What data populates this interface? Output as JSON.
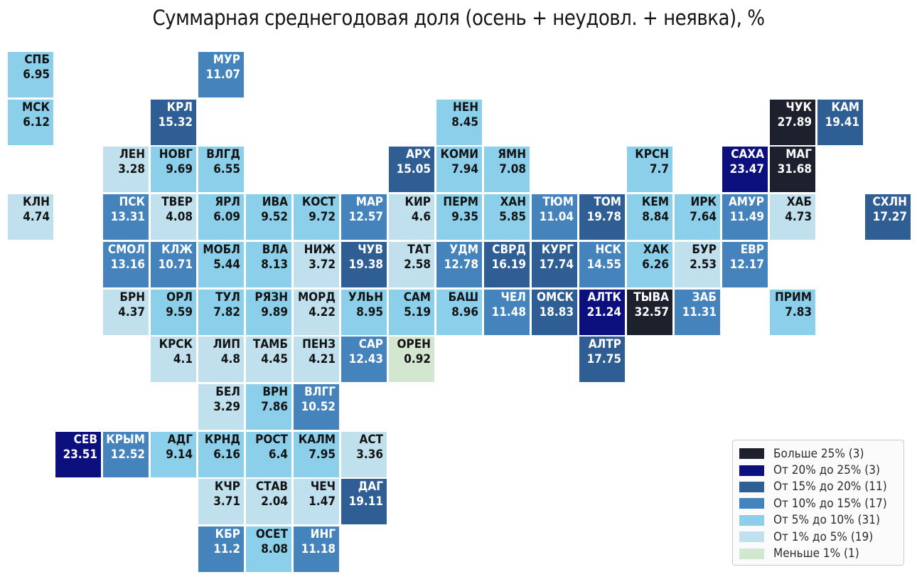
{
  "title": "Суммарная среднегодовая доля (осень + неудовл. + неявка), %",
  "colors": {
    "gt25": "#1c212d",
    "r20_25": "#0c107e",
    "r15_20": "#2e5e94",
    "r10_15": "#4583bc",
    "r5_10": "#8bcfea",
    "r1_5": "#c0e0ee",
    "lt1": "#d2e6d0"
  },
  "text_colors": {
    "dark": "#131313",
    "light": "#ffffff"
  },
  "legend": {
    "items": [
      {
        "label": "Больше 25% (3)",
        "color_key": "gt25"
      },
      {
        "label": "От 20% до 25% (3)",
        "color_key": "r20_25"
      },
      {
        "label": "От 15% до 20% (11)",
        "color_key": "r15_20"
      },
      {
        "label": "От 10% до 15% (17)",
        "color_key": "r10_15"
      },
      {
        "label": "От 5% до 10% (31)",
        "color_key": "r5_10"
      },
      {
        "label": "От 1% до 5% (19)",
        "color_key": "r1_5"
      },
      {
        "label": "Меньше 1% (1)",
        "color_key": "lt1"
      }
    ]
  },
  "chart_data": {
    "type": "heatmap",
    "title": "Суммарная среднегодовая доля (осень + неудовл. + неявка), %",
    "value_unit": "%",
    "bucket_thresholds": [
      1,
      5,
      10,
      15,
      20,
      25
    ],
    "legend_position": "lower right",
    "regions": [
      {
        "code": "СПБ",
        "value": 6.95,
        "row": 0,
        "col": 0
      },
      {
        "code": "МУР",
        "value": 11.07,
        "row": 0,
        "col": 4
      },
      {
        "code": "МСК",
        "value": 6.12,
        "row": 1,
        "col": 0
      },
      {
        "code": "КРЛ",
        "value": 15.32,
        "row": 1,
        "col": 3
      },
      {
        "code": "НЕН",
        "value": 8.45,
        "row": 1,
        "col": 9
      },
      {
        "code": "ЧУК",
        "value": 27.89,
        "row": 1,
        "col": 16
      },
      {
        "code": "КАМ",
        "value": 19.41,
        "row": 1,
        "col": 17
      },
      {
        "code": "ЛЕН",
        "value": 3.28,
        "row": 2,
        "col": 2
      },
      {
        "code": "НОВГ",
        "value": 9.69,
        "row": 2,
        "col": 3
      },
      {
        "code": "ВЛГД",
        "value": 6.55,
        "row": 2,
        "col": 4
      },
      {
        "code": "АРХ",
        "value": 15.05,
        "row": 2,
        "col": 8
      },
      {
        "code": "КОМИ",
        "value": 7.94,
        "row": 2,
        "col": 9
      },
      {
        "code": "ЯМН",
        "value": 7.08,
        "row": 2,
        "col": 10
      },
      {
        "code": "КРСН",
        "value": 7.7,
        "row": 2,
        "col": 13
      },
      {
        "code": "САХА",
        "value": 23.47,
        "row": 2,
        "col": 15
      },
      {
        "code": "МАГ",
        "value": 31.68,
        "row": 2,
        "col": 16
      },
      {
        "code": "КЛН",
        "value": 4.74,
        "row": 3,
        "col": 0
      },
      {
        "code": "ПСК",
        "value": 13.31,
        "row": 3,
        "col": 2
      },
      {
        "code": "ТВЕР",
        "value": 4.08,
        "row": 3,
        "col": 3
      },
      {
        "code": "ЯРЛ",
        "value": 6.09,
        "row": 3,
        "col": 4
      },
      {
        "code": "ИВА",
        "value": 9.52,
        "row": 3,
        "col": 5
      },
      {
        "code": "КОСТ",
        "value": 9.72,
        "row": 3,
        "col": 6
      },
      {
        "code": "МАР",
        "value": 12.57,
        "row": 3,
        "col": 7
      },
      {
        "code": "КИР",
        "value": 4.6,
        "row": 3,
        "col": 8
      },
      {
        "code": "ПЕРМ",
        "value": 9.35,
        "row": 3,
        "col": 9
      },
      {
        "code": "ХАН",
        "value": 5.85,
        "row": 3,
        "col": 10
      },
      {
        "code": "ТЮМ",
        "value": 11.04,
        "row": 3,
        "col": 11
      },
      {
        "code": "ТОМ",
        "value": 19.78,
        "row": 3,
        "col": 12
      },
      {
        "code": "КЕМ",
        "value": 8.84,
        "row": 3,
        "col": 13
      },
      {
        "code": "ИРК",
        "value": 7.64,
        "row": 3,
        "col": 14
      },
      {
        "code": "АМУР",
        "value": 11.49,
        "row": 3,
        "col": 15
      },
      {
        "code": "ХАБ",
        "value": 4.73,
        "row": 3,
        "col": 16
      },
      {
        "code": "СХЛН",
        "value": 17.27,
        "row": 3,
        "col": 18
      },
      {
        "code": "СМОЛ",
        "value": 13.16,
        "row": 4,
        "col": 2
      },
      {
        "code": "КЛЖ",
        "value": 10.71,
        "row": 4,
        "col": 3
      },
      {
        "code": "МОБЛ",
        "value": 5.44,
        "row": 4,
        "col": 4
      },
      {
        "code": "ВЛА",
        "value": 8.13,
        "row": 4,
        "col": 5
      },
      {
        "code": "НИЖ",
        "value": 3.72,
        "row": 4,
        "col": 6
      },
      {
        "code": "ЧУВ",
        "value": 19.38,
        "row": 4,
        "col": 7
      },
      {
        "code": "ТАТ",
        "value": 2.58,
        "row": 4,
        "col": 8
      },
      {
        "code": "УДМ",
        "value": 12.78,
        "row": 4,
        "col": 9
      },
      {
        "code": "СВРД",
        "value": 16.19,
        "row": 4,
        "col": 10
      },
      {
        "code": "КУРГ",
        "value": 17.74,
        "row": 4,
        "col": 11
      },
      {
        "code": "НСК",
        "value": 14.55,
        "row": 4,
        "col": 12
      },
      {
        "code": "ХАК",
        "value": 6.26,
        "row": 4,
        "col": 13
      },
      {
        "code": "БУР",
        "value": 2.53,
        "row": 4,
        "col": 14
      },
      {
        "code": "ЕВР",
        "value": 12.17,
        "row": 4,
        "col": 15
      },
      {
        "code": "БРН",
        "value": 4.37,
        "row": 5,
        "col": 2
      },
      {
        "code": "ОРЛ",
        "value": 9.59,
        "row": 5,
        "col": 3
      },
      {
        "code": "ТУЛ",
        "value": 7.82,
        "row": 5,
        "col": 4
      },
      {
        "code": "РЯЗН",
        "value": 9.89,
        "row": 5,
        "col": 5
      },
      {
        "code": "МОРД",
        "value": 4.22,
        "row": 5,
        "col": 6
      },
      {
        "code": "УЛЬН",
        "value": 8.95,
        "row": 5,
        "col": 7
      },
      {
        "code": "САМ",
        "value": 5.19,
        "row": 5,
        "col": 8
      },
      {
        "code": "БАШ",
        "value": 8.96,
        "row": 5,
        "col": 9
      },
      {
        "code": "ЧЕЛ",
        "value": 11.48,
        "row": 5,
        "col": 10
      },
      {
        "code": "ОМСК",
        "value": 18.83,
        "row": 5,
        "col": 11
      },
      {
        "code": "АЛТК",
        "value": 21.24,
        "row": 5,
        "col": 12
      },
      {
        "code": "ТЫВА",
        "value": 32.57,
        "row": 5,
        "col": 13
      },
      {
        "code": "ЗАБ",
        "value": 11.31,
        "row": 5,
        "col": 14
      },
      {
        "code": "ПРИМ",
        "value": 7.83,
        "row": 5,
        "col": 16
      },
      {
        "code": "КРСК",
        "value": 4.1,
        "row": 6,
        "col": 3
      },
      {
        "code": "ЛИП",
        "value": 4.8,
        "row": 6,
        "col": 4
      },
      {
        "code": "ТАМБ",
        "value": 4.45,
        "row": 6,
        "col": 5
      },
      {
        "code": "ПЕНЗ",
        "value": 4.21,
        "row": 6,
        "col": 6
      },
      {
        "code": "САР",
        "value": 12.43,
        "row": 6,
        "col": 7
      },
      {
        "code": "ОРЕН",
        "value": 0.92,
        "row": 6,
        "col": 8
      },
      {
        "code": "АЛТР",
        "value": 17.75,
        "row": 6,
        "col": 12
      },
      {
        "code": "БЕЛ",
        "value": 3.29,
        "row": 7,
        "col": 4
      },
      {
        "code": "ВРН",
        "value": 7.86,
        "row": 7,
        "col": 5
      },
      {
        "code": "ВЛГГ",
        "value": 10.52,
        "row": 7,
        "col": 6
      },
      {
        "code": "СЕВ",
        "value": 23.51,
        "row": 8,
        "col": 1
      },
      {
        "code": "КРЫМ",
        "value": 12.52,
        "row": 8,
        "col": 2
      },
      {
        "code": "АДГ",
        "value": 9.14,
        "row": 8,
        "col": 3
      },
      {
        "code": "КРНД",
        "value": 6.16,
        "row": 8,
        "col": 4
      },
      {
        "code": "РОСТ",
        "value": 6.4,
        "row": 8,
        "col": 5
      },
      {
        "code": "КАЛМ",
        "value": 7.95,
        "row": 8,
        "col": 6
      },
      {
        "code": "АСТ",
        "value": 3.36,
        "row": 8,
        "col": 7
      },
      {
        "code": "КЧР",
        "value": 3.71,
        "row": 9,
        "col": 4
      },
      {
        "code": "СТАВ",
        "value": 2.04,
        "row": 9,
        "col": 5
      },
      {
        "code": "ЧЕЧ",
        "value": 1.47,
        "row": 9,
        "col": 6
      },
      {
        "code": "ДАГ",
        "value": 19.11,
        "row": 9,
        "col": 7
      },
      {
        "code": "КБР",
        "value": 11.2,
        "row": 10,
        "col": 4
      },
      {
        "code": "ОСЕТ",
        "value": 8.08,
        "row": 10,
        "col": 5
      },
      {
        "code": "ИНГ",
        "value": 11.18,
        "row": 10,
        "col": 6
      }
    ]
  }
}
